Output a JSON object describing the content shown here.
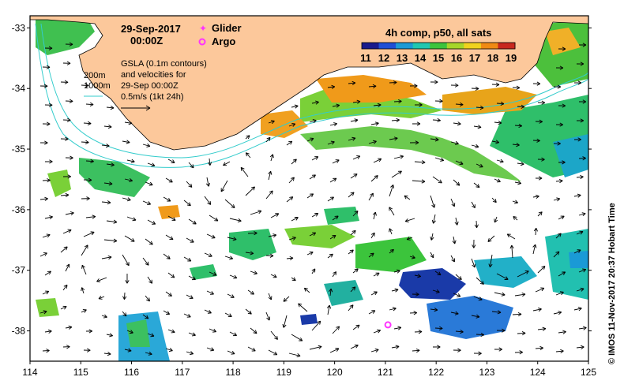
{
  "header": {
    "date": "29-Sep-2017",
    "time": "00:00Z"
  },
  "legend": {
    "glider_label": "Glider",
    "argo_label": "Argo",
    "glider_color": "#ff33ff",
    "argo_color": "#ff33ff"
  },
  "info": {
    "line1": "GSLA (0.1m contours)",
    "line2": "and velocities for",
    "line3": "29-Sep 00:00Z",
    "line4": "0.5m/s (1kt 24h)",
    "depth1": "200m",
    "depth2": "1000m"
  },
  "colorbar": {
    "title": "4h comp, p50, all sats",
    "ticks": [
      "11",
      "12",
      "13",
      "14",
      "15",
      "16",
      "17",
      "18",
      "19"
    ],
    "colors": [
      "#1a1a8c",
      "#1f4fd6",
      "#1c9ad6",
      "#22c7b0",
      "#3cc43c",
      "#a6d62a",
      "#f0d21e",
      "#f08a14",
      "#c8281e"
    ]
  },
  "credit": "© IMOS 11-Nov-2017 20:37 Hobart Time",
  "axes": {
    "x_ticks": [
      "114",
      "115",
      "116",
      "117",
      "118",
      "119",
      "120",
      "121",
      "122",
      "123",
      "124",
      "125"
    ],
    "y_ticks": [
      "-33",
      "-34",
      "-35",
      "-36",
      "-37",
      "-38"
    ]
  },
  "colors": {
    "land": "#fcc89b",
    "contour": "#33cccc",
    "arrow": "#000000"
  },
  "argo_position": {
    "lon": 121.05,
    "lat": -37.9
  }
}
